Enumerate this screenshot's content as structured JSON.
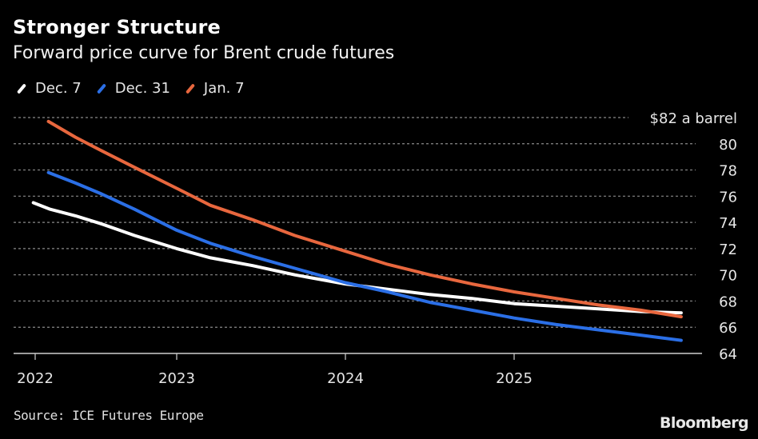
{
  "header": {
    "title": "Stronger Structure",
    "subtitle": "Forward price curve for Brent crude futures"
  },
  "footer": {
    "source": "Source: ICE Futures Europe",
    "brand": "Bloomberg"
  },
  "chart_data": {
    "type": "line",
    "title": "Stronger Structure",
    "subtitle": "Forward price curve for Brent crude futures",
    "xlabel": "",
    "ylabel": "$ a barrel",
    "ylim": [
      64,
      82
    ],
    "xlim": [
      2022.0,
      2026.05
    ],
    "y_ticks": [
      64,
      66,
      68,
      70,
      72,
      74,
      76,
      78,
      80,
      82
    ],
    "y_tick_labels": [
      "64",
      "66",
      "68",
      "70",
      "72",
      "74",
      "76",
      "78",
      "80",
      "$82 a barrel"
    ],
    "x_ticks": [
      {
        "value": 2022.16,
        "label": "2022"
      },
      {
        "value": 2023.0,
        "label": "2023"
      },
      {
        "value": 2024.0,
        "label": "2024"
      },
      {
        "value": 2025.0,
        "label": "2025"
      }
    ],
    "grid": true,
    "legend_position": "top-left",
    "series": [
      {
        "name": "Dec. 7",
        "color": "#ffffff",
        "x": [
          2022.15,
          2022.25,
          2022.4,
          2022.55,
          2022.75,
          2023.0,
          2023.2,
          2023.45,
          2023.7,
          2024.0,
          2024.25,
          2024.5,
          2024.75,
          2025.0,
          2025.25,
          2025.5,
          2025.75,
          2025.99
        ],
        "values": [
          75.5,
          75.0,
          74.5,
          73.9,
          73.0,
          72.0,
          71.3,
          70.7,
          70.0,
          69.3,
          68.9,
          68.5,
          68.2,
          67.8,
          67.6,
          67.4,
          67.2,
          67.1
        ]
      },
      {
        "name": "Dec. 31",
        "color": "#2b6fe6",
        "x": [
          2022.24,
          2022.4,
          2022.55,
          2022.75,
          2023.0,
          2023.2,
          2023.45,
          2023.7,
          2024.0,
          2024.25,
          2024.5,
          2024.75,
          2025.0,
          2025.25,
          2025.5,
          2025.75,
          2025.99
        ],
        "values": [
          77.8,
          77.0,
          76.2,
          75.0,
          73.4,
          72.4,
          71.4,
          70.5,
          69.4,
          68.7,
          67.9,
          67.3,
          66.7,
          66.2,
          65.8,
          65.4,
          65.0
        ]
      },
      {
        "name": "Jan. 7",
        "color": "#e8673e",
        "x": [
          2022.24,
          2022.4,
          2022.55,
          2022.75,
          2023.0,
          2023.2,
          2023.45,
          2023.7,
          2024.0,
          2024.25,
          2024.5,
          2024.75,
          2025.0,
          2025.25,
          2025.5,
          2025.75,
          2025.99
        ],
        "values": [
          81.7,
          80.5,
          79.5,
          78.2,
          76.6,
          75.3,
          74.2,
          73.0,
          71.8,
          70.8,
          70.0,
          69.3,
          68.7,
          68.2,
          67.7,
          67.3,
          66.8
        ]
      }
    ]
  }
}
